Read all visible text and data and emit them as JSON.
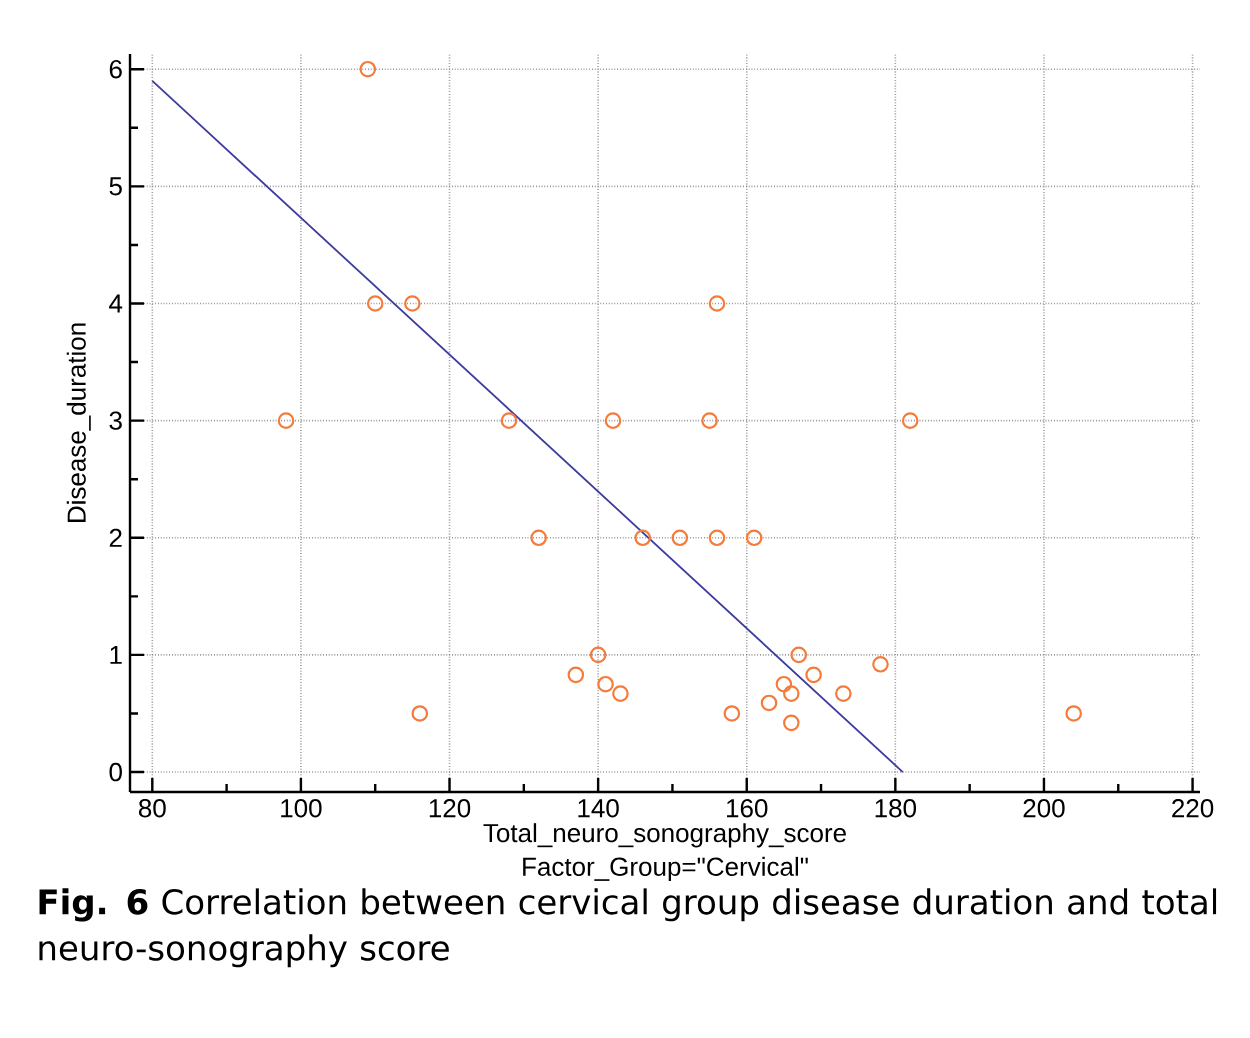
{
  "chart_data": {
    "type": "scatter",
    "xlabel": "Total_neuro_sonography_score",
    "ylabel": "Disease_duration",
    "annotations": [
      "Factor_Group=\"Cervical\"",
      "**Fig. 6** Correlation between cervical group disease duration and total neuro-sonography score"
    ],
    "xlim": [
      77,
      221
    ],
    "ylim": [
      -0.17,
      6.13
    ],
    "xticks": [
      80,
      100,
      120,
      140,
      160,
      180,
      200,
      220
    ],
    "yticks": [
      0,
      1,
      2,
      3,
      4,
      5,
      6
    ],
    "grid": true,
    "series": [
      {
        "marker": "circle",
        "color": "#f47b3c",
        "x": [
          109,
          110,
          115,
          156,
          98,
          128,
          142,
          155,
          182,
          132,
          146,
          151,
          156,
          161,
          140,
          137,
          141,
          143,
          116,
          167,
          178,
          169,
          165,
          166,
          173,
          163,
          158,
          166,
          204
        ],
        "values": [
          6,
          4,
          4,
          4,
          3,
          3,
          3,
          3,
          3,
          2,
          2,
          2,
          2,
          2,
          1,
          0.83,
          0.75,
          0.67,
          0.5,
          1,
          0.92,
          0.83,
          0.75,
          0.67,
          0.67,
          0.59,
          0.5,
          0.42,
          0.5
        ]
      },
      {
        "type": "line",
        "marker": "none",
        "color": "#3c3c9c",
        "x": [
          80,
          181
        ],
        "values": [
          5.9,
          0
        ]
      }
    ]
  }
}
